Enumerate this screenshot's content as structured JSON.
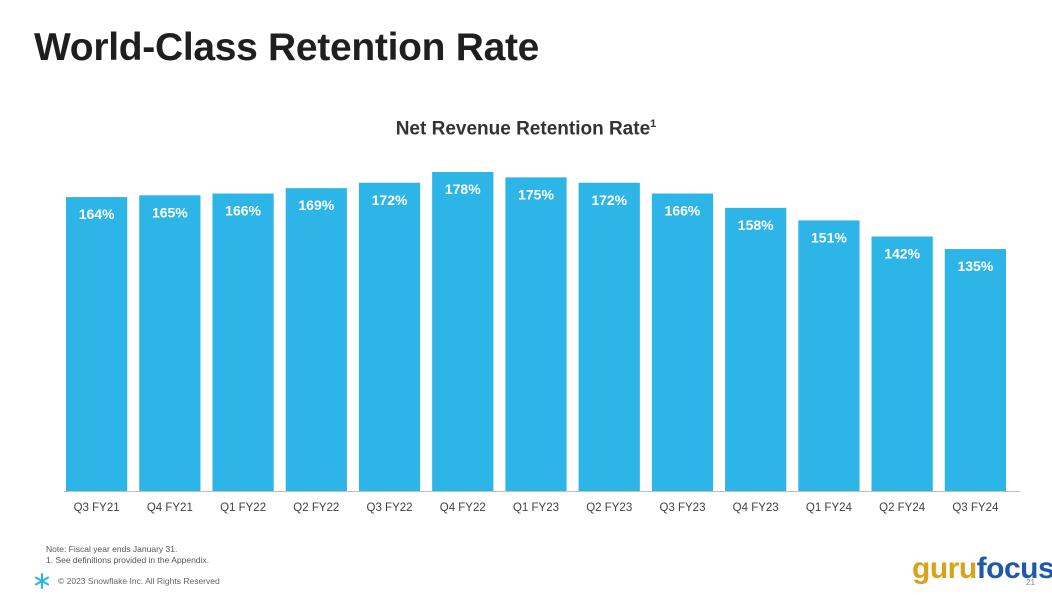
{
  "page": {
    "title": "World-Class Retention Rate"
  },
  "chart_data": {
    "type": "bar",
    "title": "Net Revenue Retention Rate",
    "title_footnote": "1",
    "categories": [
      "Q3 FY21",
      "Q4 FY21",
      "Q1 FY22",
      "Q2 FY22",
      "Q3 FY22",
      "Q4 FY22",
      "Q1 FY23",
      "Q2 FY23",
      "Q3 FY23",
      "Q4 FY23",
      "Q1 FY24",
      "Q2 FY24",
      "Q3 FY24"
    ],
    "values": [
      164,
      165,
      166,
      169,
      172,
      178,
      175,
      172,
      166,
      158,
      151,
      142,
      135
    ],
    "value_labels": [
      "164%",
      "165%",
      "166%",
      "169%",
      "172%",
      "178%",
      "175%",
      "172%",
      "166%",
      "158%",
      "151%",
      "142%",
      "135%"
    ],
    "xlabel": "",
    "ylabel": "",
    "ylim": [
      0,
      178
    ],
    "grid": false,
    "legend": "none",
    "bar_color": "#2db5e8",
    "label_color": "#ffffff"
  },
  "notes": {
    "line1": "Note: Fiscal year ends January 31.",
    "line2": "1.  See definitions provided in the Appendix."
  },
  "footer": {
    "copyright": "© 2023 Snowflake Inc. All Rights Reserved",
    "page_number": "21",
    "logo_icon": "snowflake-icon",
    "logo_color": "#29b5e8"
  },
  "watermark": {
    "part1": "guru",
    "part2": "focus"
  }
}
